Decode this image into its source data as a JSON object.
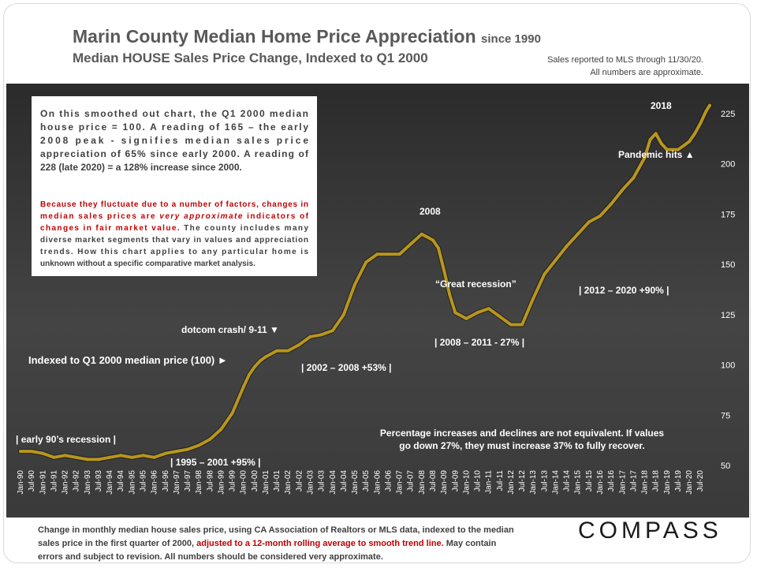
{
  "header": {
    "title_main": "Marin County Median Home Price Appreciation",
    "title_since": "since 1990",
    "subtitle": "Median HOUSE Sales Price Change, Indexed to Q1 2000",
    "note_line1": "Sales reported to MLS through 11/30/20.",
    "note_line2": "All numbers are approximate."
  },
  "infobox": {
    "para1_lines": [
      "On this smoothed out chart, the Q1 2000 median",
      "house price = 100. A reading of 165 – the early",
      "2008 peak - signifies median sales price",
      "appreciation of 65% since early 2000.  A reading of",
      "228 (late 2020) = a 128% increase since 2000."
    ],
    "para2_lines": [
      [
        {
          "t": "Because they fluctuate due to a number of factors, changes in",
          "c": "red"
        }
      ],
      [
        {
          "t": "median sales prices are ",
          "c": "red"
        },
        {
          "t": "very approximate",
          "c": "red-i"
        },
        {
          "t": " indicators of",
          "c": "red"
        }
      ],
      [
        {
          "t": "changes in fair market value.",
          "c": "red"
        },
        {
          "t": " The county includes many",
          "c": "gray"
        }
      ],
      [
        {
          "t": "diverse market segments that vary in values and appreciation",
          "c": "gray"
        }
      ],
      [
        {
          "t": "trends. How this chart applies to any particular home is",
          "c": "gray"
        }
      ],
      [
        {
          "t": "unknown without a specific comparative market analysis.",
          "c": "gray"
        }
      ]
    ]
  },
  "annotations": {
    "y2018": "2018",
    "pandemic": "Pandemic hits ▲",
    "y2008": "2008",
    "great_recession": "“Great recession”",
    "range_2012_2020": "| 2012 – 2020 +90% |",
    "range_2008_2011": "| 2008 – 2011 - 27% |",
    "dotcom": "dotcom crash/ 9-11 ▼",
    "indexed": "Indexed to Q1 2000 median price (100) ►",
    "range_2002_2008": "| 2002 – 2008 +53% |",
    "early90s": "| early 90’s recession |",
    "range_1995_2001": "| 1995 – 2001 +95% |",
    "pct_note_line1": "Percentage increases and declines are not equivalent. If values",
    "pct_note_line2": "go down 27%, they must increase 37% to fully recover."
  },
  "footer": {
    "line1": "Change in monthly median house sales price, using CA Association of Realtors or MLS data, indexed to the median",
    "line2_a": "sales price in the first quarter of 2000, ",
    "line2_red": "adjusted to a 12-month rolling average to smooth trend line.",
    "line2_b": "  May contain",
    "line3": "errors and subject to revision. All numbers should be considered very approximate."
  },
  "logo": {
    "text": "COMPASS"
  },
  "colors": {
    "plot_bg": "#3a3a3a",
    "line": "#b8961e",
    "line_shadow": "#141414",
    "grid": "#5a5a5a",
    "text_light": "#ffffff",
    "red": "#c00000"
  },
  "chart_data": {
    "type": "line",
    "title": "Marin County Median Home Price Appreciation since 1990",
    "subtitle": "Median HOUSE Sales Price Change, Indexed to Q1 2000",
    "xlabel": "",
    "ylabel": "",
    "ylim": [
      50,
      230
    ],
    "yticks": [
      50,
      75,
      100,
      125,
      150,
      175,
      200,
      225
    ],
    "grid": false,
    "xlim": [
      1990.0,
      2020.917
    ],
    "xtick_labels": [
      "Jan-90",
      "Jul-90",
      "Jan-91",
      "Jul-91",
      "Jan-92",
      "Jul-92",
      "Jan-93",
      "Jul-93",
      "Jan-94",
      "Jul-94",
      "Jan-95",
      "Jul-95",
      "Jan-96",
      "Jul-96",
      "Jan-97",
      "Jul-97",
      "Jan-98",
      "Jul-98",
      "Jan-99",
      "Jul-99",
      "Jan-00",
      "Jul-00",
      "Jan-01",
      "Jul-01",
      "Jan-02",
      "Jul-02",
      "Jan-03",
      "Jul-03",
      "Jan-04",
      "Jul-04",
      "Jan-05",
      "Jul-05",
      "Jan-06",
      "Jul-06",
      "Jan-07",
      "Jul-07",
      "Jan-08",
      "Jul-08",
      "Jan-09",
      "Jul-09",
      "Jan-10",
      "Jul-10",
      "Jan-11",
      "Jul-11",
      "Jan-12",
      "Jul-12",
      "Jan-13",
      "Jul-13",
      "Jan-14",
      "Jul-14",
      "Jan-15",
      "Jul-15",
      "Jan-16",
      "Jul-16",
      "Jan-17",
      "Jul-17",
      "Jan-18",
      "Jul-18",
      "Jan-19",
      "Jul-19",
      "Jan-20",
      "Jul-20"
    ],
    "series": [
      {
        "name": "Median house sales price index (Q1 2000 = 100)",
        "x": [
          1990.0,
          1990.5,
          1991.0,
          1991.5,
          1992.0,
          1992.5,
          1993.0,
          1993.5,
          1994.0,
          1994.5,
          1995.0,
          1995.5,
          1996.0,
          1996.5,
          1997.0,
          1997.5,
          1998.0,
          1998.5,
          1999.0,
          1999.5,
          2000.0,
          2000.25,
          2000.5,
          2000.75,
          2001.0,
          2001.5,
          2002.0,
          2002.5,
          2003.0,
          2003.5,
          2004.0,
          2004.5,
          2005.0,
          2005.5,
          2006.0,
          2006.5,
          2007.0,
          2007.5,
          2008.0,
          2008.5,
          2008.75,
          2009.0,
          2009.25,
          2009.5,
          2010.0,
          2010.5,
          2011.0,
          2011.5,
          2012.0,
          2012.25,
          2012.5,
          2013.0,
          2013.5,
          2014.0,
          2014.5,
          2015.0,
          2015.5,
          2016.0,
          2016.5,
          2017.0,
          2017.5,
          2018.0,
          2018.25,
          2018.5,
          2018.75,
          2019.0,
          2019.5,
          2019.75,
          2020.0,
          2020.25,
          2020.5,
          2020.75,
          2020.917
        ],
        "y": [
          57,
          57,
          56,
          54,
          55,
          54,
          53,
          53,
          54,
          55,
          54,
          55,
          54,
          56,
          57,
          58,
          60,
          63,
          68,
          76,
          89,
          95,
          99,
          102,
          104,
          107,
          107,
          110,
          114,
          115,
          117,
          125,
          140,
          151,
          155,
          155,
          155,
          160,
          165,
          162,
          158,
          147,
          135,
          126,
          123,
          126,
          128,
          124,
          120,
          120,
          120,
          133,
          145,
          152,
          159,
          165,
          171,
          174,
          180,
          187,
          193,
          203,
          212,
          215,
          210,
          207,
          207,
          209,
          211,
          215,
          220,
          226,
          229
        ]
      }
    ]
  }
}
